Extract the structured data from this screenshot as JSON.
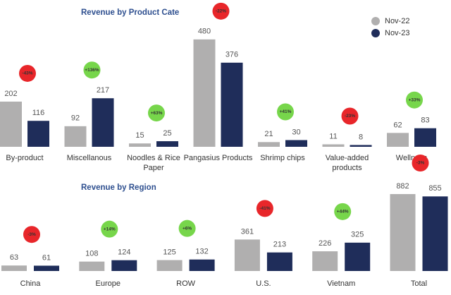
{
  "chart_data": [
    {
      "type": "bar",
      "title": "Revenue by Product Cate",
      "categories": [
        [
          "By-product"
        ],
        [
          "Miscellanous"
        ],
        [
          "Noodles & Rice",
          "Paper"
        ],
        [
          "Pangasius Products"
        ],
        [
          "Shrimp chips"
        ],
        [
          "Value-added",
          "products"
        ],
        [
          "Wellness"
        ]
      ],
      "series": [
        {
          "name": "Nov-22",
          "color": "#b0afaf",
          "values": [
            202,
            92,
            15,
            480,
            21,
            11,
            62
          ]
        },
        {
          "name": "Nov-23",
          "color": "#1f2d5a",
          "values": [
            116,
            217,
            25,
            376,
            30,
            8,
            83
          ]
        }
      ],
      "changes": [
        "-43%",
        "+136%",
        "+63%",
        "-22%",
        "+41%",
        "-23%",
        "+33%"
      ],
      "legend": "top-right"
    },
    {
      "type": "bar",
      "title": "Revenue by Region",
      "categories": [
        [
          "China"
        ],
        [
          "Europe"
        ],
        [
          "ROW"
        ],
        [
          "U.S."
        ],
        [
          "Vietnam"
        ],
        [
          "Total"
        ]
      ],
      "series": [
        {
          "color": "#b0afaf",
          "values": [
            63,
            108,
            125,
            361,
            226,
            882
          ]
        },
        {
          "color": "#1f2d5a",
          "values": [
            61,
            124,
            132,
            213,
            325,
            855
          ]
        }
      ],
      "changes": [
        "-3%",
        "+14%",
        "+6%",
        "-41%",
        "+44%",
        "-3%"
      ]
    }
  ]
}
